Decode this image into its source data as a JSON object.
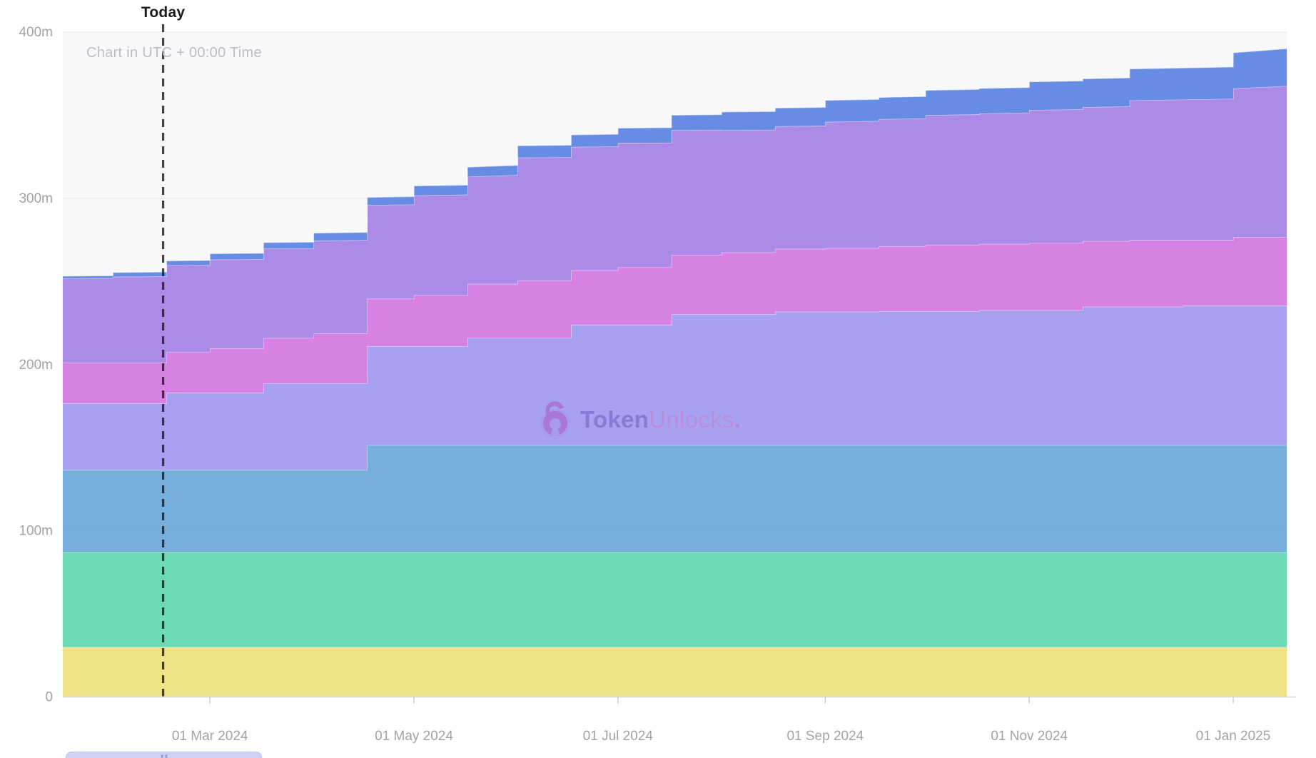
{
  "page": {
    "background": "#ffffff"
  },
  "annotations": {
    "today_label": "Today",
    "utc_note": "Chart in UTC + 00:00 Time"
  },
  "watermark": {
    "icon": "open-padlock-icon",
    "icon_color": "#ab6ed2",
    "text_bold": "Token",
    "text_light": "Unlocks",
    "dot": "."
  },
  "chart_data": {
    "type": "area",
    "stacked": true,
    "title": "",
    "xlabel": "",
    "ylabel": "",
    "grid": true,
    "legend_position": "none",
    "plot_bg": "#f8f8fa",
    "grid_color": "#e9e9ec",
    "axis_line_color": "#d9d9dd",
    "axis_text_color": "#a2a2a8",
    "today_line_color": "#1a1a1a",
    "x_axis": {
      "unit": "days",
      "range_days": [
        0,
        366
      ],
      "ticks": [
        {
          "label": "01 Mar 2024",
          "day": 44
        },
        {
          "label": "01 May 2024",
          "day": 105
        },
        {
          "label": "01 Jul 2024",
          "day": 166
        },
        {
          "label": "01 Sep 2024",
          "day": 228
        },
        {
          "label": "01 Nov 2024",
          "day": 289
        },
        {
          "label": "01 Jan 2025",
          "day": 350
        }
      ]
    },
    "y_axis": {
      "unit": "tokens (millions)",
      "max": 400,
      "ticks": [
        {
          "label": "0",
          "value": 0
        },
        {
          "label": "100m",
          "value": 100
        },
        {
          "label": "200m",
          "value": 200
        },
        {
          "label": "300m",
          "value": 300
        },
        {
          "label": "400m",
          "value": 400
        }
      ]
    },
    "today": {
      "day": 30
    },
    "series": [
      {
        "name": "band-yellow",
        "color": "#ece07f",
        "points": [
          [
            0,
            30
          ],
          [
            366,
            30
          ]
        ]
      },
      {
        "name": "band-green",
        "color": "#66d9b3",
        "points": [
          [
            0,
            57
          ],
          [
            366,
            57
          ]
        ]
      },
      {
        "name": "band-teal-blue",
        "color": "#6fabd9",
        "points": [
          [
            0,
            49.5
          ],
          [
            91,
            49.5
          ],
          [
            91.01,
            64.5
          ],
          [
            366,
            64.5
          ]
        ]
      },
      {
        "name": "band-periwinkle",
        "color": "#a39bef",
        "points": [
          [
            0,
            40.1
          ],
          [
            31,
            40.1
          ],
          [
            31.01,
            46.5
          ],
          [
            60,
            46.5
          ],
          [
            60.01,
            52.2
          ],
          [
            91,
            52.2
          ],
          [
            91.01,
            59.5
          ],
          [
            121,
            59.5
          ],
          [
            121.01,
            64.5
          ],
          [
            152,
            64.5
          ],
          [
            152.01,
            72.3
          ],
          [
            182,
            72.3
          ],
          [
            182.01,
            78.7
          ],
          [
            213,
            78.7
          ],
          [
            213.01,
            80.3
          ],
          [
            244,
            80.3
          ],
          [
            244.01,
            80.6
          ],
          [
            274,
            80.6
          ],
          [
            274.01,
            81.2
          ],
          [
            305,
            81.2
          ],
          [
            305.01,
            83.3
          ],
          [
            335,
            83.3
          ],
          [
            335.01,
            83.9
          ],
          [
            366,
            83.9
          ]
        ]
      },
      {
        "name": "band-magenta",
        "color": "#d47ae2",
        "points": [
          [
            0,
            24.4
          ],
          [
            44,
            24.4
          ],
          [
            44.01,
            26.6
          ],
          [
            60,
            26.6
          ],
          [
            60.01,
            27.3
          ],
          [
            75,
            27.3
          ],
          [
            75.01,
            29.9
          ],
          [
            91,
            29.9
          ],
          [
            91.01,
            28.6
          ],
          [
            105,
            28.6
          ],
          [
            105.01,
            30.8
          ],
          [
            121,
            30.8
          ],
          [
            121.01,
            32.5
          ],
          [
            136,
            32.5
          ],
          [
            136.01,
            34.5
          ],
          [
            152,
            34.5
          ],
          [
            152.01,
            32.9
          ],
          [
            166,
            32.9
          ],
          [
            166.01,
            34.7
          ],
          [
            182,
            34.7
          ],
          [
            182.01,
            35.8
          ],
          [
            197,
            35.8
          ],
          [
            197.01,
            37.3
          ],
          [
            213,
            37.3
          ],
          [
            213.01,
            37.8
          ],
          [
            228,
            37.8
          ],
          [
            228.01,
            38.2
          ],
          [
            244,
            38.2
          ],
          [
            244.01,
            39.0
          ],
          [
            258,
            39.0
          ],
          [
            258.01,
            39.9
          ],
          [
            274,
            39.9
          ],
          [
            274.01,
            39.8
          ],
          [
            289,
            39.8
          ],
          [
            289.01,
            40.4
          ],
          [
            305,
            40.4
          ],
          [
            305.01,
            39.5
          ],
          [
            319,
            39.5
          ],
          [
            319.01,
            40.1
          ],
          [
            335,
            40.1
          ],
          [
            335.01,
            39.5
          ],
          [
            350,
            39.5
          ],
          [
            350.01,
            41.2
          ],
          [
            366,
            41.2
          ]
        ]
      },
      {
        "name": "band-purple",
        "color": "#a884e6",
        "points": [
          [
            0,
            50.8
          ],
          [
            15,
            51
          ],
          [
            15.01,
            51.8
          ],
          [
            31,
            52
          ],
          [
            31.01,
            52.3
          ],
          [
            44,
            52.5
          ],
          [
            44.01,
            53.5
          ],
          [
            60,
            53.7
          ],
          [
            75,
            53.9
          ],
          [
            75.01,
            55.9
          ],
          [
            91,
            56.3
          ],
          [
            105,
            56.7
          ],
          [
            105.01,
            60
          ],
          [
            121,
            60.4
          ],
          [
            121.01,
            64.5
          ],
          [
            136,
            65.5
          ],
          [
            136.01,
            74
          ],
          [
            152,
            74.2
          ],
          [
            166,
            74.5
          ],
          [
            166.01,
            74.8
          ],
          [
            182,
            75
          ],
          [
            197,
            75.2
          ],
          [
            197.01,
            73.5
          ],
          [
            213,
            73.7
          ],
          [
            228,
            74
          ],
          [
            228.01,
            76
          ],
          [
            244,
            76.5
          ],
          [
            258,
            77
          ],
          [
            258.01,
            78
          ],
          [
            274,
            78.5
          ],
          [
            289,
            79
          ],
          [
            289.01,
            80
          ],
          [
            305,
            80.5
          ],
          [
            319,
            81
          ],
          [
            319.01,
            84
          ],
          [
            335,
            84.5
          ],
          [
            350,
            85
          ],
          [
            350.01,
            89.5
          ],
          [
            366,
            91
          ]
        ]
      },
      {
        "name": "band-royal-blue",
        "color": "#5e86e2",
        "points": [
          [
            0,
            1.4
          ],
          [
            15,
            1.5
          ],
          [
            15.01,
            2.6
          ],
          [
            44,
            2.8
          ],
          [
            44.01,
            3.6
          ],
          [
            75,
            3.8
          ],
          [
            75.01,
            4.6
          ],
          [
            105,
            4.8
          ],
          [
            105.01,
            5.7
          ],
          [
            136,
            5.9
          ],
          [
            136.01,
            7.2
          ],
          [
            166,
            7.4
          ],
          [
            166.01,
            9.0
          ],
          [
            197,
            9.2
          ],
          [
            197.01,
            11.0
          ],
          [
            228,
            11.2
          ],
          [
            228.01,
            13.0
          ],
          [
            258,
            13.2
          ],
          [
            258.01,
            15.0
          ],
          [
            289,
            15.2
          ],
          [
            289.01,
            17.0
          ],
          [
            319,
            17.2
          ],
          [
            319.01,
            19.0
          ],
          [
            350,
            19.2
          ],
          [
            350.01,
            21.5
          ],
          [
            366,
            22.5
          ]
        ]
      }
    ]
  },
  "scroll_chip": {
    "handle": "drag-handle"
  }
}
